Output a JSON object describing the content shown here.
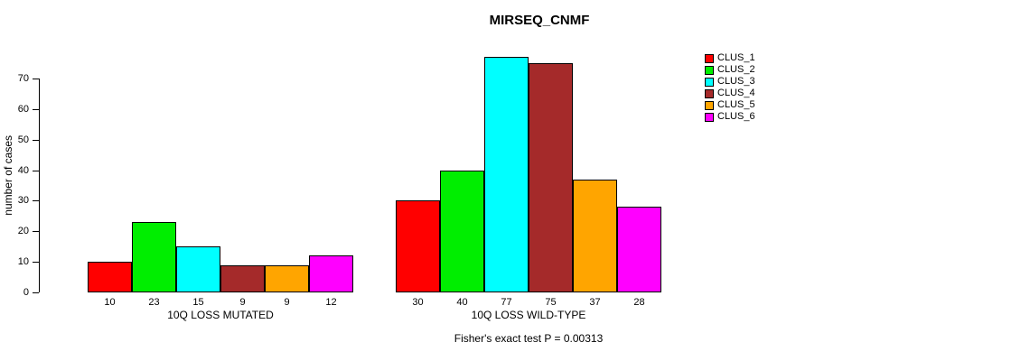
{
  "chart_data": {
    "type": "bar",
    "title": "MIRSEQ_CNMF",
    "ylabel": "number of cases",
    "annotation": "Fisher's exact test P = 0.00313",
    "categories": [
      "10Q LOSS MUTATED",
      "10Q LOSS WILD-TYPE"
    ],
    "series": [
      {
        "name": "CLUS_1",
        "color": "#FF0000",
        "values": [
          10,
          30
        ]
      },
      {
        "name": "CLUS_2",
        "color": "#00EE00",
        "values": [
          23,
          40
        ]
      },
      {
        "name": "CLUS_3",
        "color": "#00FFFF",
        "values": [
          15,
          77
        ]
      },
      {
        "name": "CLUS_4",
        "color": "#A52A2A",
        "values": [
          9,
          75
        ]
      },
      {
        "name": "CLUS_5",
        "color": "#FFA500",
        "values": [
          9,
          37
        ]
      },
      {
        "name": "CLUS_6",
        "color": "#FF00FF",
        "values": [
          12,
          28
        ]
      }
    ],
    "yticks": [
      0,
      10,
      20,
      30,
      40,
      50,
      60,
      70
    ],
    "ylim": [
      0,
      80
    ],
    "grid": false,
    "legend_position": "right",
    "value_labels": true
  }
}
